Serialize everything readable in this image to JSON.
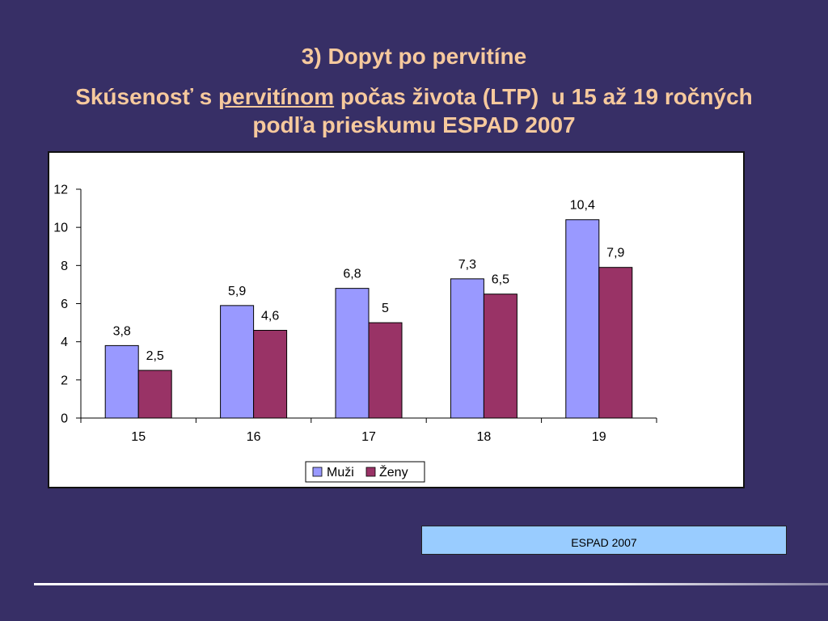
{
  "slide": {
    "title": "3) Dopyt po pervitíne",
    "subtitle": {
      "before": "Skúsenosť s ",
      "underlined": "pervitínom",
      "after": " počas života (LTP)  u 15 až 19 ročných",
      "line2": "podľa prieskumu ESPAD 2007"
    },
    "source_note": "ESPAD 2007"
  },
  "colors": {
    "background": "#372F66",
    "heading_text": "#F6C99D",
    "source_note_fill": "#99CCFF"
  },
  "chart_data": {
    "type": "bar",
    "categories": [
      "15",
      "16",
      "17",
      "18",
      "19"
    ],
    "series": [
      {
        "name": "Muži",
        "color": "#9999FF",
        "values": [
          3.8,
          5.9,
          6.8,
          7.3,
          10.4
        ],
        "labels": [
          "3,8",
          "5,9",
          "6,8",
          "7,3",
          "10,4"
        ]
      },
      {
        "name": "Ženy",
        "color": "#993366",
        "values": [
          2.5,
          4.6,
          5,
          6.5,
          7.9
        ],
        "labels": [
          "2,5",
          "4,6",
          "5",
          "6,5",
          "7,9"
        ]
      }
    ],
    "ylim": [
      0,
      12
    ],
    "yticks": [
      0,
      2,
      4,
      6,
      8,
      10,
      12
    ],
    "title": "",
    "xlabel": "",
    "ylabel": "",
    "grid": false,
    "legend": "bottom"
  }
}
